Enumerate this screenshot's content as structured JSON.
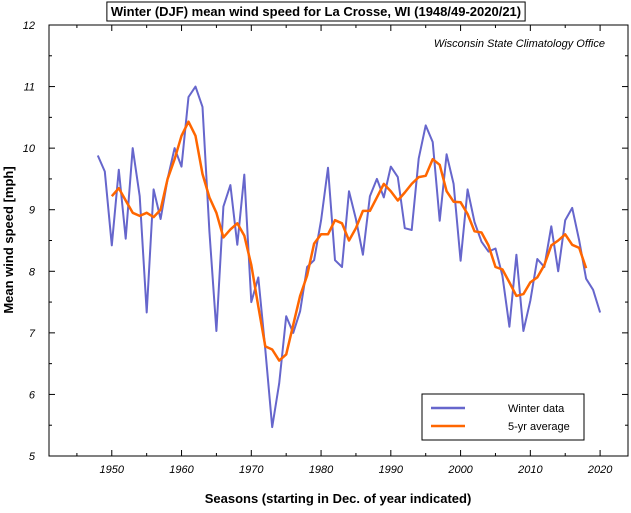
{
  "chart_data": {
    "type": "line",
    "title": "Winter (DJF) mean wind speed for La Crosse, WI (1948/49-2020/21)",
    "subtitle": "Wisconsin State Climatology Office",
    "xlabel": "Seasons (starting in Dec. of year indicated)",
    "ylabel": "Mean wind speed [mph]",
    "xlim": [
      1941,
      2024
    ],
    "ylim": [
      5,
      12
    ],
    "xticks": [
      1950,
      1960,
      1970,
      1980,
      1990,
      2000,
      2010,
      2020
    ],
    "yticks": [
      5,
      6,
      7,
      8,
      9,
      10,
      11,
      12
    ],
    "grid": false,
    "legend_position": "bottom-right",
    "series": [
      {
        "name": "Winter data",
        "color": "#6666cc",
        "x": [
          1948,
          1949,
          1950,
          1951,
          1952,
          1953,
          1954,
          1955,
          1956,
          1957,
          1958,
          1959,
          1960,
          1961,
          1962,
          1963,
          1964,
          1965,
          1966,
          1967,
          1968,
          1969,
          1970,
          1971,
          1972,
          1973,
          1974,
          1975,
          1976,
          1977,
          1978,
          1979,
          1980,
          1981,
          1982,
          1983,
          1984,
          1985,
          1986,
          1987,
          1988,
          1989,
          1990,
          1991,
          1992,
          1993,
          1994,
          1995,
          1996,
          1997,
          1998,
          1999,
          2000,
          2001,
          2002,
          2003,
          2004,
          2005,
          2006,
          2007,
          2008,
          2009,
          2010,
          2011,
          2012,
          2013,
          2014,
          2015,
          2016,
          2017,
          2018,
          2019,
          2020
        ],
        "y": [
          9.88,
          9.62,
          8.42,
          9.65,
          8.53,
          10.0,
          9.22,
          7.33,
          9.33,
          8.85,
          9.5,
          10.0,
          9.7,
          10.83,
          11.0,
          10.67,
          8.65,
          7.03,
          9.05,
          9.4,
          8.43,
          9.57,
          7.5,
          7.9,
          6.73,
          5.47,
          6.18,
          7.27,
          7.0,
          7.35,
          8.07,
          8.18,
          8.83,
          9.68,
          8.18,
          8.07,
          9.3,
          8.85,
          8.27,
          9.22,
          9.5,
          9.2,
          9.7,
          9.53,
          8.7,
          8.67,
          9.83,
          10.37,
          10.1,
          8.82,
          9.9,
          9.42,
          8.17,
          9.33,
          8.8,
          8.48,
          8.32,
          8.37,
          7.93,
          7.1,
          8.27,
          7.03,
          7.52,
          8.2,
          8.07,
          8.73,
          8.0,
          8.83,
          9.03,
          8.5,
          7.88,
          7.7,
          7.33
        ]
      },
      {
        "name": "5-yr average",
        "color": "#ff6600",
        "x": [
          1950,
          1951,
          1952,
          1953,
          1954,
          1955,
          1956,
          1957,
          1958,
          1959,
          1960,
          1961,
          1962,
          1963,
          1964,
          1965,
          1966,
          1967,
          1968,
          1969,
          1970,
          1971,
          1972,
          1973,
          1974,
          1975,
          1976,
          1977,
          1978,
          1979,
          1980,
          1981,
          1982,
          1983,
          1984,
          1985,
          1986,
          1987,
          1988,
          1989,
          1990,
          1991,
          1992,
          1993,
          1994,
          1995,
          1996,
          1997,
          1998,
          1999,
          2000,
          2001,
          2002,
          2003,
          2004,
          2005,
          2006,
          2007,
          2008,
          2009,
          2010,
          2011,
          2012,
          2013,
          2014,
          2015,
          2016,
          2017,
          2018
        ],
        "y": [
          9.22,
          9.35,
          9.15,
          8.95,
          8.9,
          8.95,
          8.88,
          9.0,
          9.5,
          9.82,
          10.2,
          10.43,
          10.2,
          9.58,
          9.2,
          8.95,
          8.55,
          8.68,
          8.78,
          8.58,
          8.1,
          7.43,
          6.78,
          6.73,
          6.55,
          6.65,
          7.13,
          7.6,
          7.93,
          8.45,
          8.6,
          8.6,
          8.83,
          8.78,
          8.5,
          8.7,
          8.98,
          8.98,
          9.2,
          9.42,
          9.3,
          9.15,
          9.28,
          9.42,
          9.53,
          9.55,
          9.82,
          9.73,
          9.3,
          9.13,
          9.12,
          8.93,
          8.65,
          8.63,
          8.42,
          8.07,
          8.03,
          7.82,
          7.6,
          7.63,
          7.82,
          7.9,
          8.1,
          8.42,
          8.5,
          8.6,
          8.43,
          8.38,
          8.05
        ]
      }
    ]
  }
}
